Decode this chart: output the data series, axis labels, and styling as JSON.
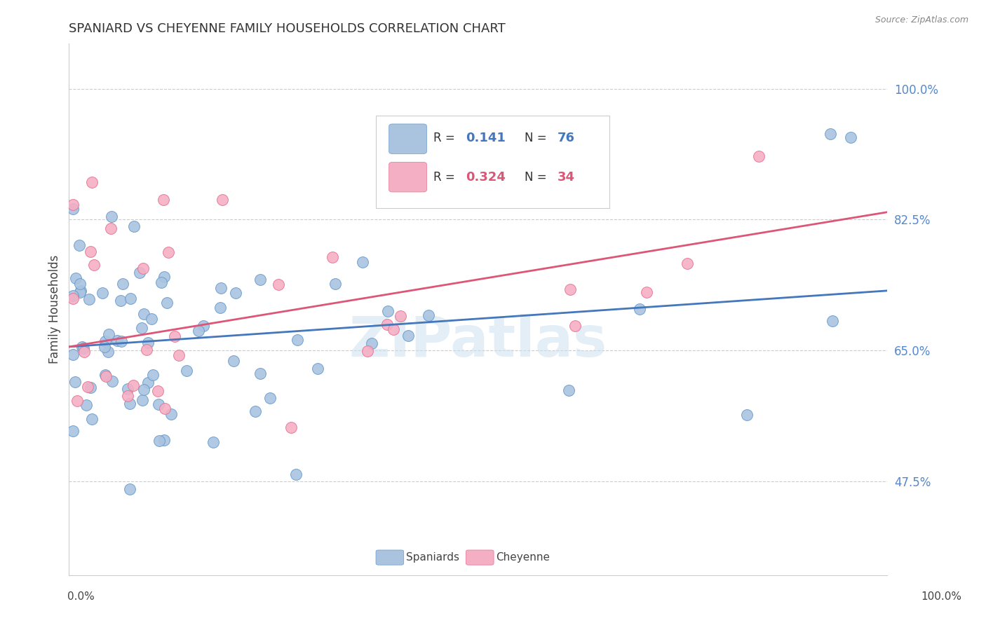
{
  "title": "SPANIARD VS CHEYENNE FAMILY HOUSEHOLDS CORRELATION CHART",
  "source": "Source: ZipAtlas.com",
  "ylabel": "Family Households",
  "ytick_labels": [
    "47.5%",
    "65.0%",
    "82.5%",
    "100.0%"
  ],
  "ytick_values": [
    0.475,
    0.65,
    0.825,
    1.0
  ],
  "xmin": 0.0,
  "xmax": 1.0,
  "ymin": 0.35,
  "ymax": 1.06,
  "spaniard_R": "0.141",
  "spaniard_N": "76",
  "cheyenne_R": "0.324",
  "cheyenne_N": "34",
  "blue_scatter_color": "#aac4e0",
  "pink_scatter_color": "#f4afc4",
  "blue_edge_color": "#6699cc",
  "pink_edge_color": "#e87090",
  "blue_line_color": "#4477bb",
  "pink_line_color": "#dd5577",
  "ytick_color": "#5588cc",
  "grid_color": "#cccccc",
  "watermark_color": "#cce0f0",
  "sp_line_x0": 0.0,
  "sp_line_y0": 0.655,
  "sp_line_x1": 1.0,
  "sp_line_y1": 0.73,
  "ch_line_x0": 0.0,
  "ch_line_y0": 0.655,
  "ch_line_x1": 1.0,
  "ch_line_y1": 0.835
}
